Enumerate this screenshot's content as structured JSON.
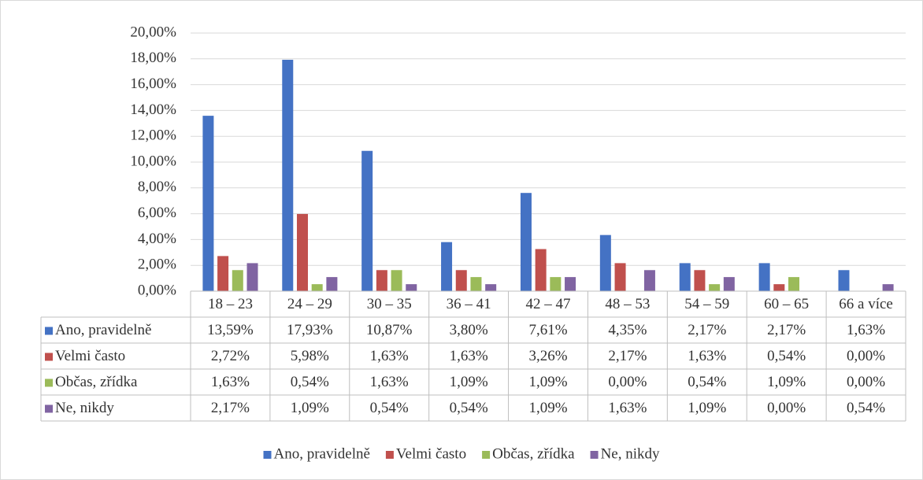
{
  "chart_data": {
    "type": "bar",
    "categories": [
      "18 – 23",
      "24 – 29",
      "30 – 35",
      "36 – 41",
      "42 – 47",
      "48 – 53",
      "54 – 59",
      "60 – 65",
      "66 a více"
    ],
    "series": [
      {
        "name": "Ano, pravidelně",
        "color": "#4472c4",
        "values": [
          13.59,
          17.93,
          10.87,
          3.8,
          7.61,
          4.35,
          2.17,
          2.17,
          1.63
        ],
        "value_labels": [
          "13,59%",
          "17,93%",
          "10,87%",
          "3,80%",
          "7,61%",
          "4,35%",
          "2,17%",
          "2,17%",
          "1,63%"
        ]
      },
      {
        "name": "Velmi často",
        "color": "#c0504d",
        "values": [
          2.72,
          5.98,
          1.63,
          1.63,
          3.26,
          2.17,
          1.63,
          0.54,
          0.0
        ],
        "value_labels": [
          "2,72%",
          "5,98%",
          "1,63%",
          "1,63%",
          "3,26%",
          "2,17%",
          "1,63%",
          "0,54%",
          "0,00%"
        ]
      },
      {
        "name": "Občas, zřídka",
        "color": "#9bbb59",
        "values": [
          1.63,
          0.54,
          1.63,
          1.09,
          1.09,
          0.0,
          0.54,
          1.09,
          0.0
        ],
        "value_labels": [
          "1,63%",
          "0,54%",
          "1,63%",
          "1,09%",
          "1,09%",
          "0,00%",
          "0,54%",
          "1,09%",
          "0,00%"
        ]
      },
      {
        "name": "Ne, nikdy",
        "color": "#8064a2",
        "values": [
          2.17,
          1.09,
          0.54,
          0.54,
          1.09,
          1.63,
          1.09,
          0.0,
          0.54
        ],
        "value_labels": [
          "2,17%",
          "1,09%",
          "0,54%",
          "0,54%",
          "1,09%",
          "1,63%",
          "1,09%",
          "0,00%",
          "0,54%"
        ]
      }
    ],
    "ylim": [
      0,
      20
    ],
    "yticks": [
      {
        "value": 0,
        "label": "0,00%"
      },
      {
        "value": 2,
        "label": "2,00%"
      },
      {
        "value": 4,
        "label": "4,00%"
      },
      {
        "value": 6,
        "label": "6,00%"
      },
      {
        "value": 8,
        "label": "8,00%"
      },
      {
        "value": 10,
        "label": "10,00%"
      },
      {
        "value": 12,
        "label": "12,00%"
      },
      {
        "value": 14,
        "label": "14,00%"
      },
      {
        "value": 16,
        "label": "16,00%"
      },
      {
        "value": 18,
        "label": "18,00%"
      },
      {
        "value": 20,
        "label": "20,00%"
      }
    ],
    "grid": true,
    "legend": "bottom"
  }
}
